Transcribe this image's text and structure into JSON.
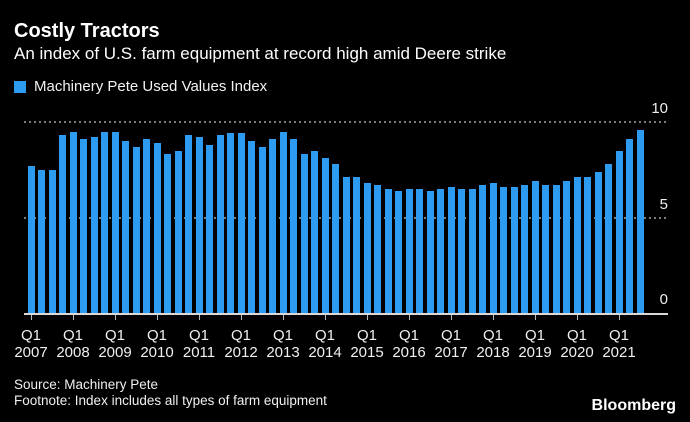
{
  "header": {
    "title": "Costly Tractors",
    "subtitle": "An index of U.S. farm equipment at record high amid Deere strike"
  },
  "legend": {
    "label": "Machinery Pete Used Values Index"
  },
  "chart_data": {
    "type": "bar",
    "title": "Machinery Pete Used Values Index",
    "categories": [
      "2007 Q1",
      "2007 Q2",
      "2007 Q3",
      "2007 Q4",
      "2008 Q1",
      "2008 Q2",
      "2008 Q3",
      "2008 Q4",
      "2009 Q1",
      "2009 Q2",
      "2009 Q3",
      "2009 Q4",
      "2010 Q1",
      "2010 Q2",
      "2010 Q3",
      "2010 Q4",
      "2011 Q1",
      "2011 Q2",
      "2011 Q3",
      "2011 Q4",
      "2012 Q1",
      "2012 Q2",
      "2012 Q3",
      "2012 Q4",
      "2013 Q1",
      "2013 Q2",
      "2013 Q3",
      "2013 Q4",
      "2014 Q1",
      "2014 Q2",
      "2014 Q3",
      "2014 Q4",
      "2015 Q1",
      "2015 Q2",
      "2015 Q3",
      "2015 Q4",
      "2016 Q1",
      "2016 Q2",
      "2016 Q3",
      "2016 Q4",
      "2017 Q1",
      "2017 Q2",
      "2017 Q3",
      "2017 Q4",
      "2018 Q1",
      "2018 Q2",
      "2018 Q3",
      "2018 Q4",
      "2019 Q1",
      "2019 Q2",
      "2019 Q3",
      "2019 Q4",
      "2020 Q1",
      "2020 Q2",
      "2020 Q3",
      "2020 Q4",
      "2021 Q1",
      "2021 Q2",
      "2021 Q3"
    ],
    "values": [
      7.7,
      7.5,
      7.5,
      9.3,
      9.5,
      9.1,
      9.2,
      9.5,
      9.5,
      9.0,
      8.7,
      9.1,
      8.9,
      8.3,
      8.5,
      9.3,
      9.2,
      8.8,
      9.3,
      9.4,
      9.4,
      9.0,
      8.7,
      9.1,
      9.5,
      9.1,
      8.3,
      8.5,
      8.1,
      7.8,
      7.1,
      7.1,
      6.8,
      6.7,
      6.5,
      6.4,
      6.5,
      6.5,
      6.4,
      6.5,
      6.6,
      6.5,
      6.5,
      6.7,
      6.8,
      6.6,
      6.6,
      6.7,
      6.9,
      6.7,
      6.7,
      6.9,
      7.1,
      7.1,
      7.4,
      7.8,
      8.5,
      9.1,
      9.6
    ],
    "x_tick_quarter": "Q1",
    "x_tick_years": [
      "2007",
      "2008",
      "2009",
      "2010",
      "2011",
      "2012",
      "2013",
      "2014",
      "2015",
      "2016",
      "2017",
      "2018",
      "2019",
      "2020",
      "2021"
    ],
    "y_ticks": [
      0,
      5,
      10
    ],
    "y_gridlines_dotted": [
      5,
      10
    ],
    "ylim": [
      0,
      10
    ],
    "bar_color": "#2D9CF0",
    "grid": "horizontal dotted, baseline solid",
    "legend_position": "top-left",
    "background": "#000000"
  },
  "footer": {
    "source": "Source: Machinery Pete",
    "footnote": "Footnote: Index includes all types of farm equipment",
    "brand": "Bloomberg"
  }
}
